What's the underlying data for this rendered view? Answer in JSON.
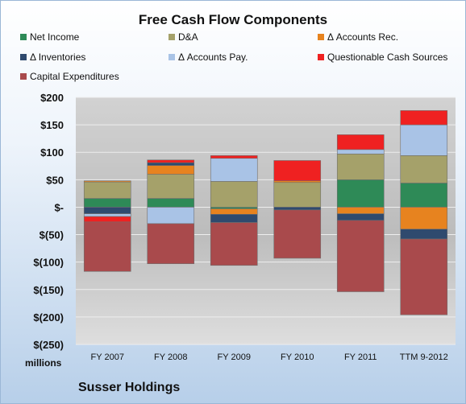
{
  "chart_data": {
    "type": "bar",
    "stacked": true,
    "title": "Free Cash Flow Components",
    "categories": [
      "FY 2007",
      "FY 2008",
      "FY 2009",
      "FY 2010",
      "FY 2011",
      "TTM 9-2012"
    ],
    "ylim": [
      -250,
      200
    ],
    "yticks": [
      {
        "value": 200,
        "label": "$200"
      },
      {
        "value": 150,
        "label": "$150"
      },
      {
        "value": 100,
        "label": "$100"
      },
      {
        "value": 50,
        "label": "$50"
      },
      {
        "value": 0,
        "label": "$-"
      },
      {
        "value": -50,
        "label": "$(50)"
      },
      {
        "value": -100,
        "label": "$(100)"
      },
      {
        "value": -150,
        "label": "$(150)"
      },
      {
        "value": -200,
        "label": "$(200)"
      },
      {
        "value": -250,
        "label": "$(250)"
      }
    ],
    "units_label": "millions",
    "grid": true,
    "legend_position": "top",
    "series": [
      {
        "name": "Net Income",
        "color": "#2e8a57",
        "values": [
          16,
          16,
          -3,
          0,
          50,
          44
        ]
      },
      {
        "name": "D&A",
        "color": "#a5a16a",
        "values": [
          30,
          44,
          47,
          45,
          47,
          50
        ]
      },
      {
        "name": "Δ Accounts Rec.",
        "color": "#e7831f",
        "values": [
          2,
          16,
          -10,
          3,
          -12,
          -40
        ]
      },
      {
        "name": "Δ Inventories",
        "color": "#2f4a6e",
        "values": [
          -12,
          5,
          -15,
          -5,
          -12,
          -18
        ]
      },
      {
        "name": "Δ Accounts Pay.",
        "color": "#a9c3e6",
        "values": [
          -5,
          -30,
          42,
          0,
          8,
          56
        ]
      },
      {
        "name": "Questionable Cash Sources",
        "color": "#ef2121",
        "values": [
          -10,
          5,
          5,
          37,
          27,
          26
        ]
      },
      {
        "name": "Capital Expenditures",
        "color": "#a94a4c",
        "values": [
          -90,
          -73,
          -78,
          -88,
          -130,
          -138
        ]
      }
    ]
  },
  "company": "Susser Holdings"
}
